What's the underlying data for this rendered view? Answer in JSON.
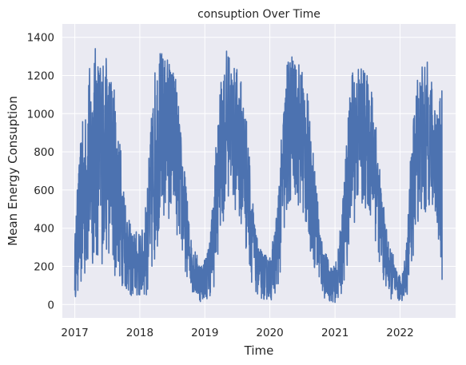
{
  "chart_data": {
    "type": "line",
    "title": "consuption Over Time",
    "xlabel": "Time",
    "ylabel": "Mean Energy Consuption",
    "x_range": [
      "2016-10-23",
      "2022-11-09"
    ],
    "ylim": [
      -70,
      1470
    ],
    "x_ticks": [
      "2017",
      "2018",
      "2019",
      "2020",
      "2021",
      "2022"
    ],
    "y_ticks": [
      "0",
      "200",
      "400",
      "600",
      "800",
      "1000",
      "1200",
      "1400"
    ],
    "grid": true,
    "style": {
      "background": "#eaeaf2",
      "line_color": "#4c72b0",
      "grid_color": "#ffffff"
    },
    "series": [
      {
        "x": [
          "2017-01-01",
          "2017-01-20",
          "2017-02-10",
          "2017-03-01",
          "2017-03-20",
          "2017-04-10",
          "2017-05-01",
          "2017-05-20",
          "2017-06-10",
          "2017-07-01",
          "2017-07-20",
          "2017-08-10",
          "2017-09-01",
          "2017-09-20",
          "2017-10-10",
          "2017-11-01",
          "2017-11-20",
          "2017-12-10",
          "2018-01-01",
          "2018-01-20",
          "2018-02-10",
          "2018-03-01",
          "2018-03-20",
          "2018-04-10",
          "2018-05-01",
          "2018-05-20",
          "2018-06-10",
          "2018-07-01",
          "2018-07-20",
          "2018-08-10",
          "2018-09-01",
          "2018-09-20",
          "2018-10-10",
          "2018-11-01",
          "2018-11-20",
          "2018-12-10",
          "2019-01-01",
          "2019-01-20",
          "2019-02-10",
          "2019-03-01",
          "2019-03-20",
          "2019-04-10",
          "2019-05-01",
          "2019-05-20",
          "2019-06-10",
          "2019-07-01",
          "2019-07-20",
          "2019-08-10",
          "2019-09-01",
          "2019-09-20",
          "2019-10-10",
          "2019-11-01",
          "2019-11-20",
          "2019-12-10",
          "2020-01-01",
          "2020-01-20",
          "2020-02-10",
          "2020-03-01",
          "2020-03-20",
          "2020-04-10",
          "2020-05-01",
          "2020-05-20",
          "2020-06-10",
          "2020-07-01",
          "2020-07-20",
          "2020-08-10",
          "2020-09-01",
          "2020-09-20",
          "2020-10-10",
          "2020-11-01",
          "2020-11-20",
          "2020-12-10",
          "2021-01-01",
          "2021-01-20",
          "2021-02-10",
          "2021-03-01",
          "2021-03-20",
          "2021-04-10",
          "2021-05-01",
          "2021-05-20",
          "2021-06-10",
          "2021-07-01",
          "2021-07-20",
          "2021-08-10",
          "2021-09-01",
          "2021-09-20",
          "2021-10-10",
          "2021-11-01",
          "2021-11-20",
          "2021-12-10",
          "2022-01-01",
          "2022-01-20",
          "2022-02-10",
          "2022-03-01",
          "2022-03-20",
          "2022-04-10",
          "2022-05-01",
          "2022-05-20",
          "2022-06-10",
          "2022-07-01",
          "2022-07-20",
          "2022-08-10",
          "2022-08-25"
        ],
        "low": [
          30,
          40,
          60,
          90,
          130,
          180,
          200,
          220,
          200,
          250,
          200,
          150,
          120,
          100,
          60,
          40,
          20,
          15,
          20,
          25,
          40,
          60,
          150,
          300,
          350,
          400,
          450,
          400,
          380,
          300,
          200,
          150,
          100,
          40,
          15,
          10,
          20,
          30,
          50,
          100,
          300,
          400,
          500,
          600,
          500,
          450,
          400,
          300,
          200,
          120,
          60,
          30,
          20,
          20,
          20,
          30,
          60,
          150,
          300,
          450,
          500,
          550,
          500,
          450,
          350,
          300,
          200,
          120,
          60,
          30,
          15,
          10,
          10,
          20,
          60,
          120,
          300,
          400,
          450,
          500,
          450,
          500,
          400,
          350,
          250,
          150,
          80,
          40,
          20,
          10,
          10,
          20,
          50,
          150,
          250,
          400,
          450,
          350,
          500,
          450,
          400,
          300,
          100
        ],
        "high": [
          350,
          700,
          950,
          1000,
          1250,
          1270,
          1390,
          1300,
          1310,
          1290,
          1250,
          1150,
          950,
          800,
          600,
          450,
          380,
          390,
          380,
          400,
          600,
          900,
          1200,
          1340,
          1340,
          1300,
          1320,
          1250,
          1250,
          1000,
          800,
          600,
          380,
          300,
          260,
          220,
          250,
          300,
          500,
          800,
          1050,
          1240,
          1340,
          1320,
          1250,
          1240,
          1200,
          1100,
          900,
          650,
          400,
          300,
          280,
          260,
          250,
          350,
          500,
          800,
          1100,
          1300,
          1350,
          1260,
          1300,
          1250,
          1200,
          1000,
          800,
          650,
          400,
          300,
          250,
          200,
          200,
          300,
          500,
          800,
          1050,
          1250,
          1240,
          1300,
          1250,
          1200,
          1150,
          1150,
          800,
          600,
          450,
          300,
          280,
          180,
          150,
          200,
          350,
          800,
          1000,
          1240,
          1270,
          1260,
          1280,
          1150,
          1100,
          1050,
          1170
        ]
      }
    ]
  }
}
